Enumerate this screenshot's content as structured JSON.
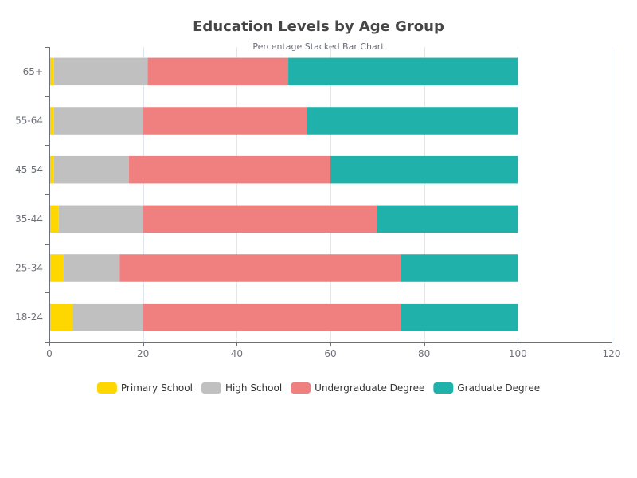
{
  "chart_data": {
    "type": "bar",
    "orientation": "horizontal",
    "stacked": true,
    "title": "Education Levels by Age Group",
    "subtitle": "Percentage Stacked Bar Chart",
    "xlabel": "",
    "ylabel": "",
    "xlim": [
      0,
      120
    ],
    "x_ticks": [
      0,
      20,
      40,
      60,
      80,
      100,
      120
    ],
    "categories": [
      "18-24",
      "25-34",
      "35-44",
      "45-54",
      "55-64",
      "65+"
    ],
    "series": [
      {
        "name": "Primary School",
        "color": "#FFD700",
        "values": [
          5,
          3,
          2,
          1,
          1,
          1
        ]
      },
      {
        "name": "High School",
        "color": "#C0C0C0",
        "values": [
          15,
          12,
          18,
          16,
          19,
          20
        ]
      },
      {
        "name": "Undergraduate Degree",
        "color": "#F08080",
        "values": [
          55,
          60,
          50,
          43,
          35,
          30
        ]
      },
      {
        "name": "Graduate Degree",
        "color": "#20B2AA",
        "values": [
          25,
          25,
          30,
          40,
          45,
          49
        ]
      }
    ],
    "grid": true,
    "legend_position": "bottom"
  },
  "colors": {
    "axis": "#6e7079",
    "grid": "#e0e6f1",
    "background": "#ffffff"
  }
}
